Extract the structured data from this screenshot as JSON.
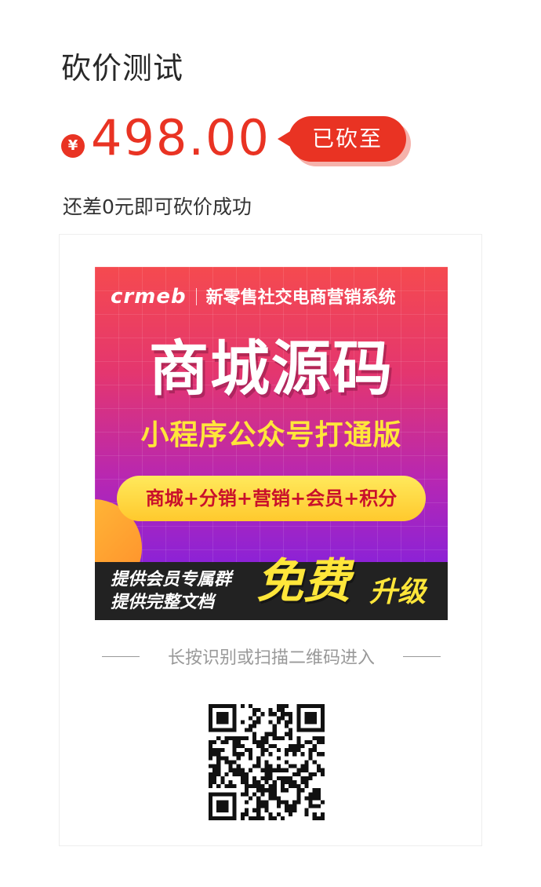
{
  "product": {
    "title": "砍价测试",
    "currency_symbol": "¥",
    "price": "498.00",
    "badge_label": "已砍至",
    "status_text": "还差0元即可砍价成功"
  },
  "poster": {
    "brand_logo": "crmeb",
    "brand_tagline": "新零售社交电商营销系统",
    "headline": "商城源码",
    "subheadline": "小程序公众号打通版",
    "features": "商城+分销+营销+会员+积分",
    "bottom_line1": "提供会员专属群",
    "bottom_line2": "提供完整文档",
    "bottom_free": "免费",
    "bottom_upgrade": "升级"
  },
  "qr": {
    "hint": "长按识别或扫描二维码进入",
    "icon": "qr-code-icon"
  },
  "colors": {
    "accent": "#e93323",
    "badge_shadow": "#f5b2ab",
    "hint": "#999999"
  }
}
